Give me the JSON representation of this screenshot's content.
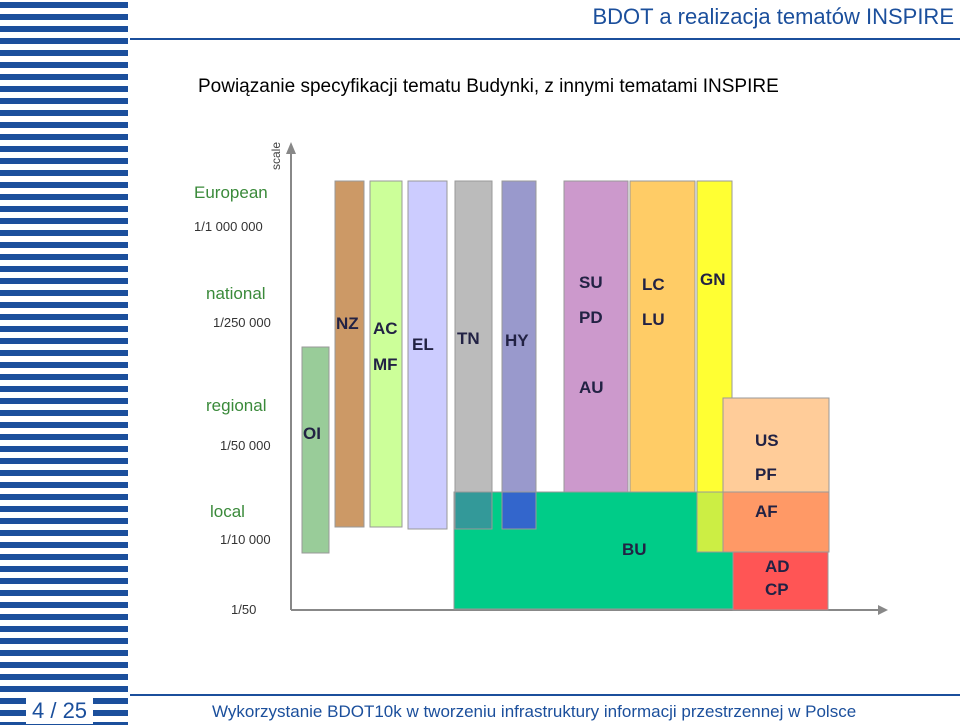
{
  "header": {
    "title": "BDOT a realizacja tematów INSPIRE",
    "subtitle": "Powiązanie specyfikacji tematu Budynki, z innymi tematami INSPIRE"
  },
  "diagram": {
    "axis_label": "scale",
    "levels": [
      {
        "name": "European",
        "scale": "1/1 000 000"
      },
      {
        "name": "national",
        "scale": "1/250 000"
      },
      {
        "name": "regional",
        "scale": "1/50 000"
      },
      {
        "name": "local",
        "scale": "1/10 000"
      },
      {
        "name": "",
        "scale": "1/50"
      }
    ],
    "themes": [
      {
        "id": "OI",
        "labels": [
          "OI"
        ],
        "color": "#99cc99"
      },
      {
        "id": "NZ",
        "labels": [
          "NZ"
        ],
        "color": "#cc9966"
      },
      {
        "id": "AC-MF",
        "labels": [
          "AC",
          "MF"
        ],
        "color": "#ccff99"
      },
      {
        "id": "EL",
        "labels": [
          "EL"
        ],
        "color": "#ccccff"
      },
      {
        "id": "TN",
        "labels": [
          "TN"
        ],
        "color": "#bbbbbb"
      },
      {
        "id": "HY",
        "labels": [
          "HY"
        ],
        "color": "#9999cc"
      },
      {
        "id": "SU-PD-AU",
        "labels": [
          "SU",
          "PD",
          "AU"
        ],
        "color": "#cc99cc"
      },
      {
        "id": "LC-LU",
        "labels": [
          "LC",
          "LU"
        ],
        "color": "#ffcc66"
      },
      {
        "id": "GN",
        "labels": [
          "GN"
        ],
        "color": "#ffff33"
      },
      {
        "id": "US-PF",
        "labels": [
          "US",
          "PF"
        ],
        "color": "#ffcc99"
      },
      {
        "id": "AF",
        "labels": [
          "AF"
        ],
        "color": "#ff9966"
      },
      {
        "id": "AD-CP",
        "labels": [
          "AD",
          "CP"
        ],
        "color": "#ff5555"
      },
      {
        "id": "BU",
        "labels": [
          "BU"
        ],
        "color": "#00cc88"
      }
    ],
    "colors": {
      "level_text": "#3a8a3a",
      "scale_text": "#333333",
      "label_text": "#222244",
      "axis": "#888888"
    }
  },
  "footer": {
    "page": "4 / 25",
    "text": "Wykorzystanie BDOT10k w tworzeniu infrastruktury informacji przestrzennej w Polsce"
  },
  "colors": {
    "brand": "#1b4f9c"
  }
}
